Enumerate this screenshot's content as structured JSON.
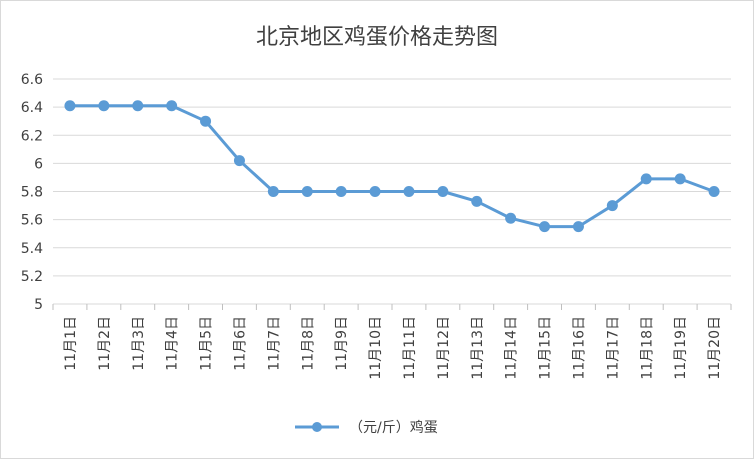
{
  "chart_data": {
    "type": "line",
    "title": "北京地区鸡蛋价格走势图",
    "categories": [
      "11月1日",
      "11月2日",
      "11月3日",
      "11月4日",
      "11月5日",
      "11月6日",
      "11月7日",
      "11月8日",
      "11月9日",
      "11月10日",
      "11月11日",
      "11月12日",
      "11月13日",
      "11月14日",
      "11月15日",
      "11月16日",
      "11月17日",
      "11月18日",
      "11月19日",
      "11月20日"
    ],
    "series": [
      {
        "name": "（元/斤）鸡蛋",
        "values": [
          6.41,
          6.41,
          6.41,
          6.41,
          6.3,
          6.02,
          5.8,
          5.8,
          5.8,
          5.8,
          5.8,
          5.8,
          5.73,
          5.61,
          5.55,
          5.55,
          5.7,
          5.89,
          5.89,
          5.8
        ]
      }
    ],
    "yticks": [
      "5",
      "5.2",
      "5.4",
      "5.6",
      "5.8",
      "6",
      "6.2",
      "6.4",
      "6.6"
    ],
    "ylim": [
      5,
      6.6
    ],
    "grid": true,
    "legend": "bottom",
    "color": "#5b9bd5"
  }
}
